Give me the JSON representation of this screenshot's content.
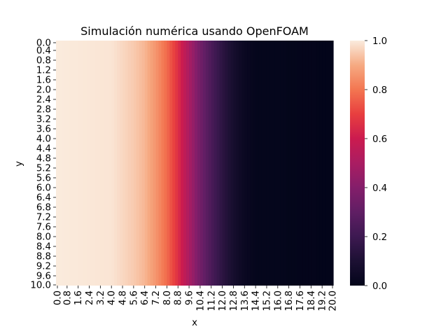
{
  "chart_data": {
    "type": "heatmap",
    "title": "Simulación numérica usando OpenFOAM",
    "xlabel": "x",
    "ylabel": "y",
    "x_tick_labels": [
      "0.0",
      "0.8",
      "1.6",
      "2.4",
      "3.2",
      "4.0",
      "4.8",
      "5.6",
      "6.4",
      "7.2",
      "8.0",
      "8.8",
      "9.6",
      "10.4",
      "11.2",
      "12.0",
      "12.8",
      "13.6",
      "14.4",
      "15.2",
      "16.0",
      "16.8",
      "17.6",
      "18.4",
      "19.2",
      "20.0"
    ],
    "y_tick_labels": [
      "0.0",
      "0.4",
      "0.8",
      "1.2",
      "1.6",
      "2.0",
      "2.4",
      "2.8",
      "3.2",
      "3.6",
      "4.0",
      "4.4",
      "4.8",
      "5.2",
      "5.6",
      "6.0",
      "6.4",
      "6.8",
      "7.2",
      "7.6",
      "8.0",
      "8.4",
      "8.8",
      "9.2",
      "9.6",
      "10.0"
    ],
    "x_range": [
      0.0,
      20.0
    ],
    "y_range": [
      0.0,
      10.0
    ],
    "profile_x": [
      0.0,
      4.0,
      5.6,
      6.4,
      7.2,
      8.0,
      8.8,
      9.6,
      10.4,
      11.2,
      12.0,
      12.8,
      13.6,
      14.4,
      20.0
    ],
    "profile_value": [
      1.0,
      0.99,
      0.95,
      0.92,
      0.86,
      0.78,
      0.66,
      0.5,
      0.35,
      0.24,
      0.15,
      0.08,
      0.03,
      0.01,
      0.0
    ],
    "value_uniform_along": "y",
    "colormap": "rocket",
    "colorbar": {
      "range": [
        0.0,
        1.0
      ],
      "tick_labels": [
        "0.0",
        "0.2",
        "0.4",
        "0.6",
        "0.8",
        "1.0"
      ]
    }
  }
}
